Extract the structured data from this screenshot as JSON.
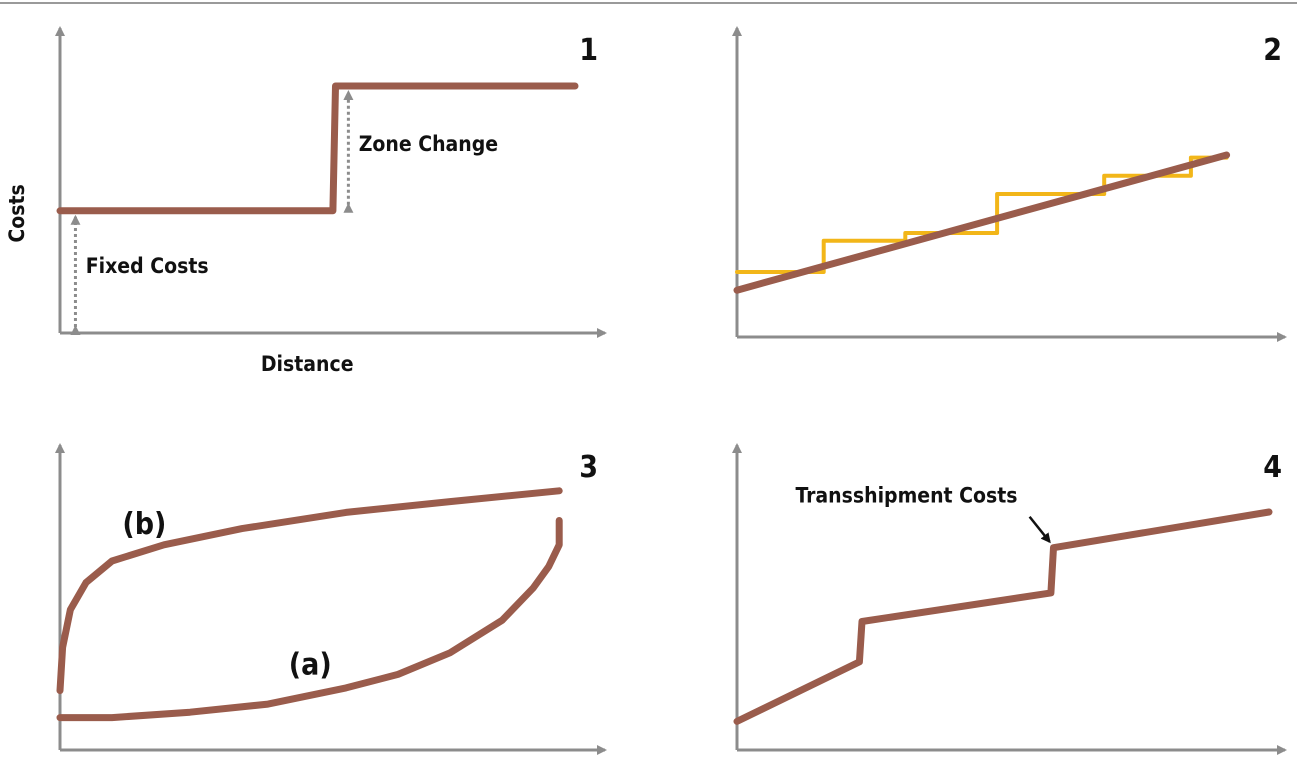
{
  "colors": {
    "axis": "#8c8c8c",
    "curve": "#9a5c4c",
    "step": "#f2b619",
    "arrow": "#8c8c8c",
    "text": "#111111"
  },
  "chart_data": [
    {
      "id": "1",
      "type": "line",
      "number_label": "1",
      "xlabel": "Distance",
      "ylabel": "Costs",
      "xlim": [
        0,
        100
      ],
      "ylim": [
        0,
        100
      ],
      "series": [
        {
          "kind": "main",
          "x": [
            0,
            53,
            53.5,
            100
          ],
          "y": [
            47,
            47,
            95,
            95
          ]
        }
      ],
      "annotations": [
        {
          "text": "Fixed Costs",
          "x": 5,
          "arrow_from": [
            3,
            0
          ],
          "arrow_to": [
            3,
            47
          ],
          "text_y": 23
        },
        {
          "text": "Zone Change",
          "x": 58,
          "arrow_from": [
            56,
            47
          ],
          "arrow_to": [
            56,
            95
          ],
          "text_y": 70
        }
      ]
    },
    {
      "id": "2",
      "type": "line",
      "number_label": "2",
      "xlabel": "",
      "ylabel": "",
      "xlim": [
        0,
        100
      ],
      "ylim": [
        0,
        100
      ],
      "series": [
        {
          "kind": "step",
          "x": [
            0,
            17,
            17,
            33,
            33,
            51,
            51,
            72,
            72,
            89,
            89,
            96
          ],
          "y": [
            25,
            25,
            37,
            37,
            40,
            40,
            55,
            55,
            62,
            62,
            69,
            69
          ]
        },
        {
          "kind": "main",
          "x": [
            0,
            96
          ],
          "y": [
            18,
            70
          ]
        }
      ],
      "annotations": []
    },
    {
      "id": "3",
      "type": "line",
      "number_label": "3",
      "xlabel": "",
      "ylabel": "",
      "xlim": [
        0,
        100
      ],
      "ylim": [
        0,
        100
      ],
      "series": [
        {
          "kind": "main",
          "name": "(b)",
          "x": [
            0,
            0.5,
            2,
            5,
            10,
            20,
            35,
            55,
            75,
            96
          ],
          "y": [
            22,
            38,
            52,
            62,
            70,
            76,
            82,
            88,
            92,
            96
          ]
        },
        {
          "kind": "main",
          "name": "(a)",
          "x": [
            0,
            10,
            25,
            40,
            55,
            65,
            75,
            85,
            91,
            94,
            96,
            96
          ],
          "y": [
            12,
            12,
            14,
            17,
            23,
            28,
            36,
            48,
            60,
            68,
            76,
            85
          ]
        }
      ],
      "annotations": [
        {
          "text": "(b)",
          "x": 12,
          "text_y": 80
        },
        {
          "text": "(a)",
          "x": 44,
          "text_y": 28
        }
      ]
    },
    {
      "id": "4",
      "type": "line",
      "number_label": "4",
      "xlabel": "",
      "ylabel": "",
      "xlim": [
        0,
        100
      ],
      "ylim": [
        0,
        100
      ],
      "series": [
        {
          "kind": "main",
          "x": [
            0,
            23,
            23.5,
            59,
            59.5,
            100
          ],
          "y": [
            12,
            37,
            54,
            66,
            85,
            100
          ]
        }
      ],
      "annotations": [
        {
          "text": "Transshipment Costs",
          "x": 11,
          "text_y": 104,
          "arrow_from": [
            55,
            98
          ],
          "arrow_to": [
            59.5,
            85
          ]
        }
      ]
    }
  ]
}
